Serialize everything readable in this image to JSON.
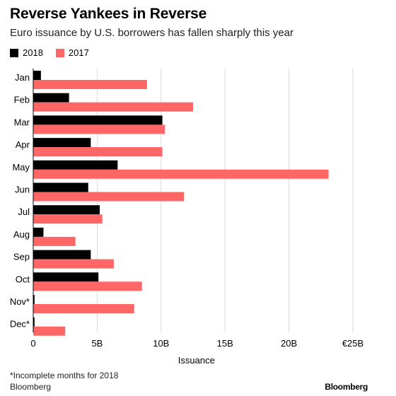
{
  "chart_data": {
    "type": "bar",
    "orientation": "horizontal",
    "title": "Reverse Yankees in Reverse",
    "subtitle": "Euro issuance by U.S. borrowers has fallen sharply this year",
    "xlabel": "Issuance",
    "ylabel": "",
    "categories": [
      "Jan",
      "Feb",
      "Mar",
      "Apr",
      "May",
      "Jun",
      "Jul",
      "Aug",
      "Sep",
      "Oct",
      "Nov*",
      "Dec*"
    ],
    "series": [
      {
        "name": "2018",
        "color": "#000000",
        "values": [
          0.6,
          2.8,
          10.1,
          4.5,
          6.6,
          4.3,
          5.2,
          0.8,
          4.5,
          5.1,
          0.1,
          0.1
        ]
      },
      {
        "name": "2017",
        "color": "#ff6666",
        "values": [
          8.9,
          12.5,
          10.3,
          10.1,
          23.1,
          11.8,
          5.4,
          3.3,
          6.3,
          8.5,
          7.9,
          2.5
        ]
      }
    ],
    "xlim": [
      0,
      25
    ],
    "xticks": [
      {
        "value": 0,
        "label": "0"
      },
      {
        "value": 5,
        "label": "5B"
      },
      {
        "value": 10,
        "label": "10B"
      },
      {
        "value": 15,
        "label": "15B"
      },
      {
        "value": 20,
        "label": "20B"
      },
      {
        "value": 25,
        "label": "€25B"
      }
    ],
    "grid": true,
    "legend_position": "top-left"
  },
  "footnote": "*Incomplete months for 2018",
  "source": "Bloomberg",
  "brand": "Bloomberg"
}
